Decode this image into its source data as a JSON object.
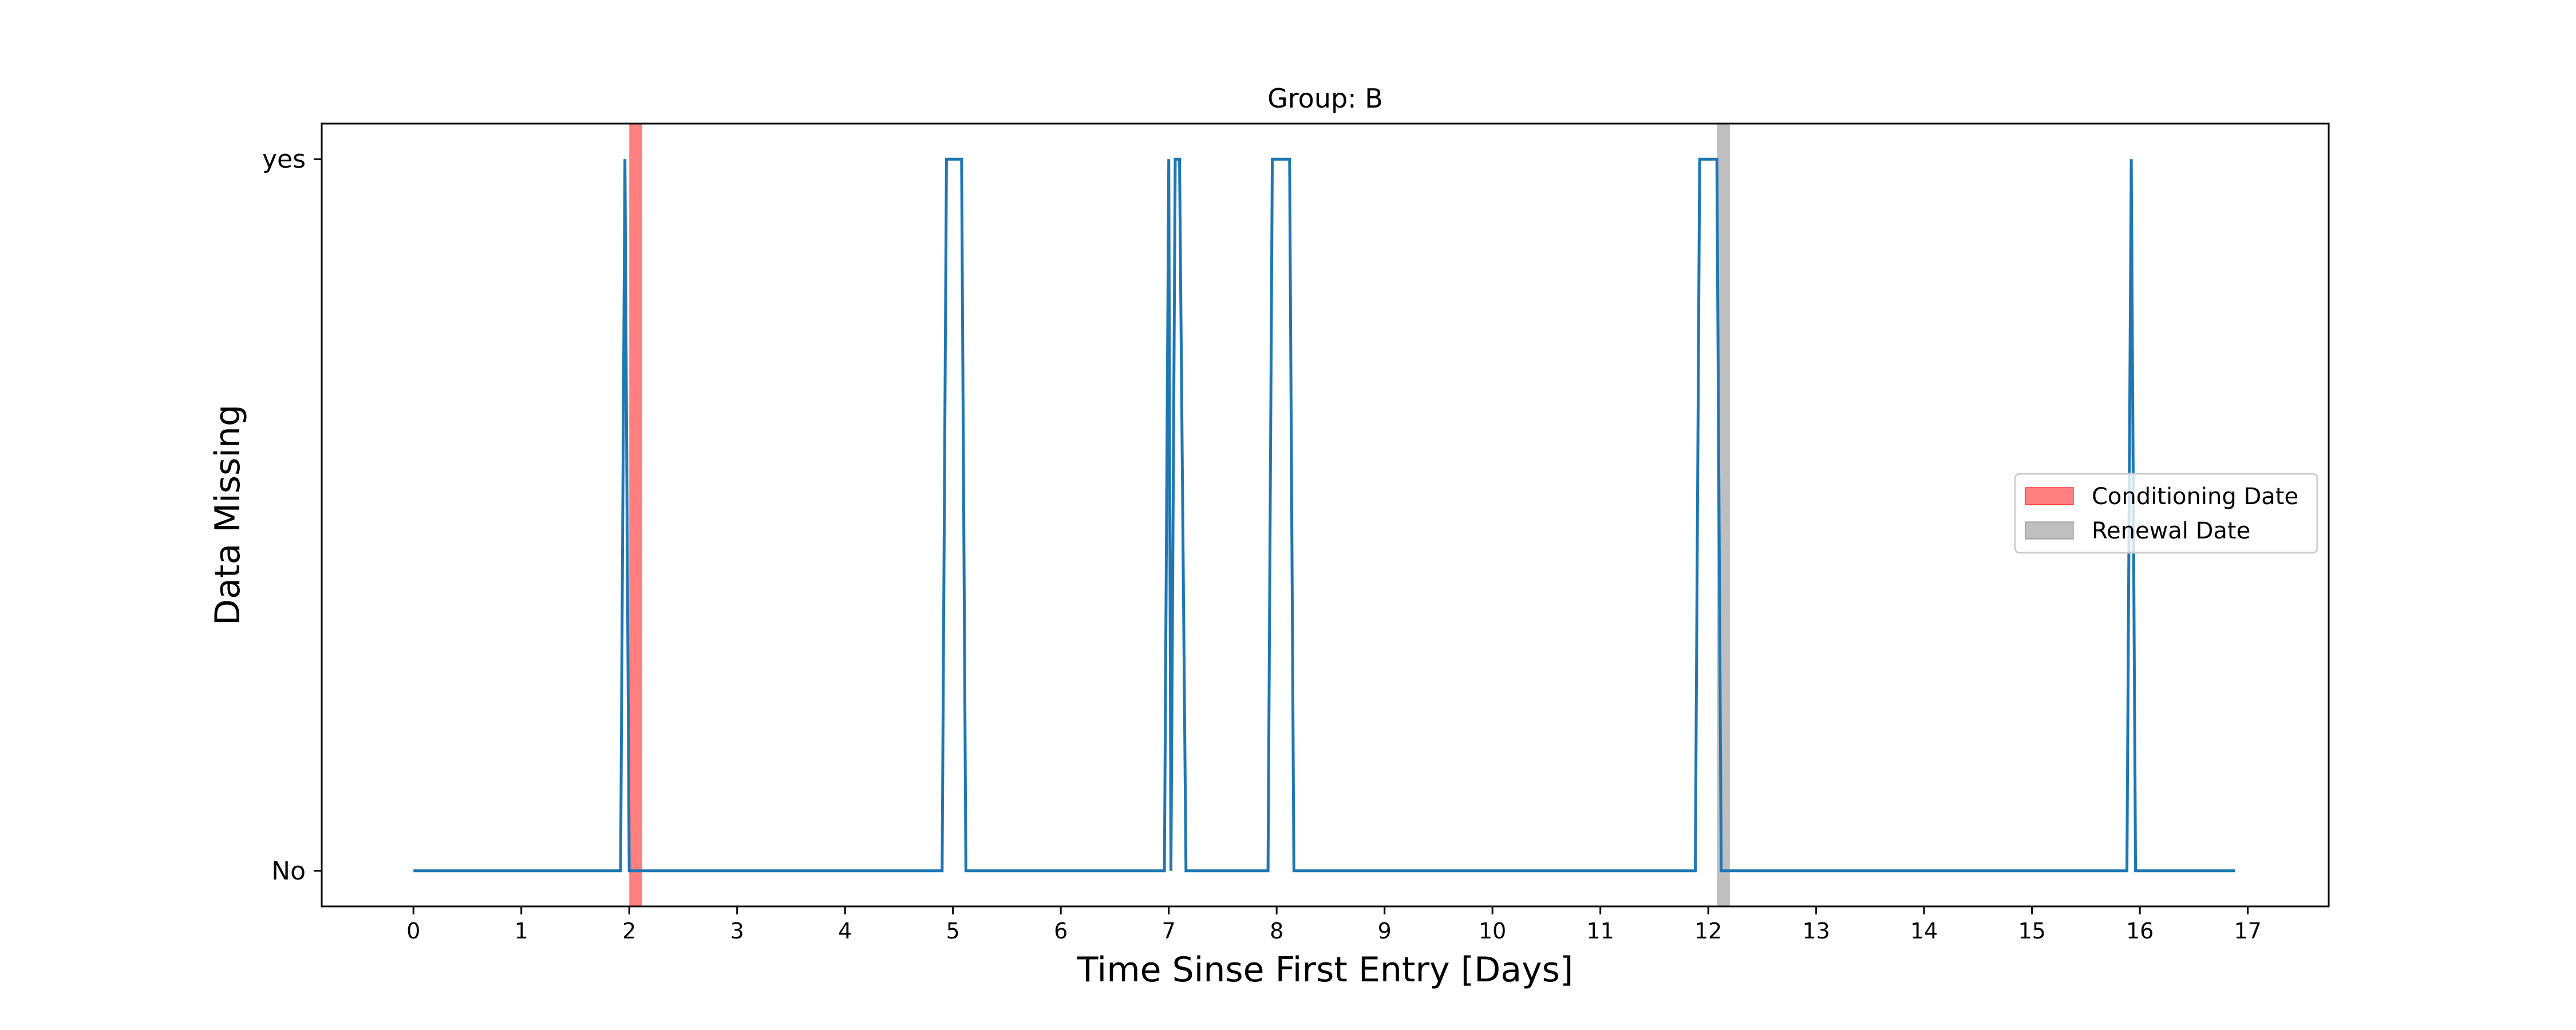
{
  "chart_data": {
    "type": "line",
    "title": "Group: B",
    "xlabel": "Time Sinse First Entry [Days]",
    "ylabel": "Data Missing",
    "xlim": [
      -0.85,
      17.75
    ],
    "ylim": [
      -0.05,
      1.05
    ],
    "xticks": [
      0,
      1,
      2,
      3,
      4,
      5,
      6,
      7,
      8,
      9,
      10,
      11,
      12,
      13,
      14,
      15,
      16,
      17
    ],
    "yticks": [
      {
        "value": 0,
        "label": "No"
      },
      {
        "value": 1,
        "label": "yes"
      }
    ],
    "grid": false,
    "legend_position": "center-right",
    "series": [
      {
        "color": "#1f77b4",
        "x": [
          0,
          1.92,
          1.96,
          2.0,
          4.9,
          4.94,
          5.08,
          5.12,
          6.96,
          7.0,
          7.02,
          7.06,
          7.1,
          7.16,
          7.92,
          7.96,
          8.12,
          8.16,
          11.88,
          11.92,
          12.08,
          12.12,
          15.88,
          15.92,
          15.96,
          16.88
        ],
        "y": [
          0,
          0,
          1,
          0,
          0,
          1,
          1,
          0,
          0,
          1,
          0,
          1,
          1,
          0,
          0,
          1,
          1,
          0,
          0,
          1,
          1,
          0,
          0,
          1,
          0,
          0
        ]
      }
    ],
    "spans": [
      {
        "name": "Conditioning Date",
        "x0": 2.0,
        "x1": 2.12,
        "color": "#ff0000",
        "alpha": 0.5
      },
      {
        "name": "Renewal Date",
        "x0": 12.08,
        "x1": 12.2,
        "color": "#808080",
        "alpha": 0.5
      }
    ]
  }
}
